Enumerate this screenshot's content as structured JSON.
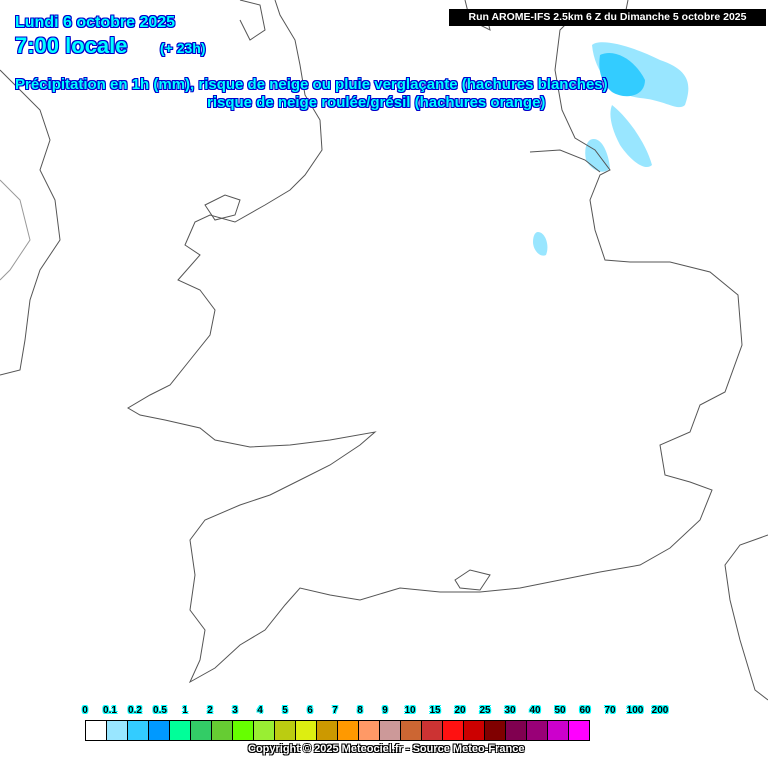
{
  "header": {
    "date": "Lundi 6 octobre 2025",
    "time": "7:00 locale",
    "lead": "(+ 23h)",
    "title_line1": "Précipitation en 1h (mm), risque de neige ou pluie verglaçante (hachures blanches)",
    "title_line2": "risque de neige roulée/grésil (hachures orange)",
    "run": "Run AROME-IFS 2.5km 6 Z du Dimanche 5 octobre 2025"
  },
  "legend": {
    "labels": [
      "0",
      "0.1",
      "0.2",
      "0.5",
      "1",
      "2",
      "3",
      "4",
      "5",
      "6",
      "7",
      "8",
      "9",
      "10",
      "15",
      "20",
      "25",
      "30",
      "40",
      "50",
      "60",
      "70",
      "100",
      "200"
    ],
    "colors": [
      "#ffffff",
      "#99e6ff",
      "#33ccff",
      "#0099ff",
      "#00ff99",
      "#33cc66",
      "#66cc33",
      "#66ff00",
      "#99ee33",
      "#bbcc11",
      "#ddee11",
      "#cc9900",
      "#ff9900",
      "#ff9966",
      "#cc9999",
      "#cc6633",
      "#cc3333",
      "#ff1111",
      "#cc0000",
      "#800000",
      "#800050",
      "#990077",
      "#cc00cc",
      "#ff00ff"
    ]
  },
  "copyright": "Copyright © 2025 Meteociel.fr - Source Meteo-France",
  "colors": {
    "coast": "#555555",
    "precip_light": "#99e6ff",
    "precip_mod": "#33ccff"
  }
}
